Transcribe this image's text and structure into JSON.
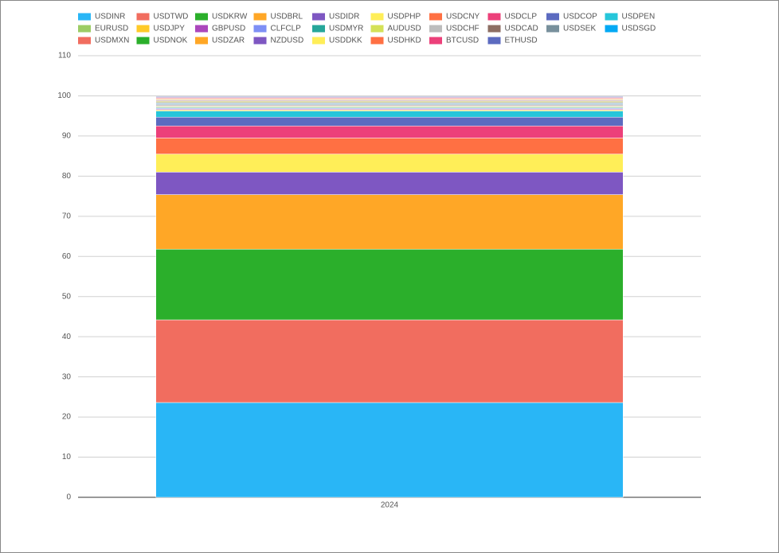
{
  "chart_data": {
    "type": "stacked-bar",
    "categories": [
      "2024"
    ],
    "ylim": [
      0,
      110
    ],
    "yticks": [
      0,
      10,
      20,
      30,
      40,
      50,
      60,
      70,
      80,
      90,
      100,
      110
    ],
    "grid": true,
    "series": [
      {
        "name": "USDINR",
        "color": "#29b6f6",
        "values": [
          23.6
        ]
      },
      {
        "name": "USDTWD",
        "color": "#f16d5f",
        "values": [
          20.6
        ]
      },
      {
        "name": "USDKRW",
        "color": "#2baf2b",
        "values": [
          17.6
        ]
      },
      {
        "name": "USDBRL",
        "color": "#ffa726",
        "values": [
          13.6
        ]
      },
      {
        "name": "USDIDR",
        "color": "#7e57c2",
        "values": [
          5.6
        ]
      },
      {
        "name": "USDPHP",
        "color": "#ffee58",
        "values": [
          4.5
        ]
      },
      {
        "name": "USDCNY",
        "color": "#ff7043",
        "values": [
          4.0
        ]
      },
      {
        "name": "USDCLP",
        "color": "#ec407a",
        "values": [
          3.0
        ]
      },
      {
        "name": "USDCOP",
        "color": "#5c6bc0",
        "values": [
          2.2
        ]
      },
      {
        "name": "USDPEN",
        "color": "#26c6da",
        "values": [
          1.5
        ]
      },
      {
        "name": "EURUSD",
        "color": "#9ccc65",
        "values": [
          0.2
        ]
      },
      {
        "name": "USDJPY",
        "color": "#ffca28",
        "values": [
          0.2
        ]
      },
      {
        "name": "GBPUSD",
        "color": "#ab47bc",
        "values": [
          0.2
        ]
      },
      {
        "name": "CLFCLP",
        "color": "#7e8ff5",
        "values": [
          0.2
        ]
      },
      {
        "name": "USDMYR",
        "color": "#26a69a",
        "values": [
          0.2
        ]
      },
      {
        "name": "AUDUSD",
        "color": "#d4e157",
        "values": [
          0.2
        ]
      },
      {
        "name": "USDCHF",
        "color": "#bdbdbd",
        "values": [
          0.2
        ]
      },
      {
        "name": "USDCAD",
        "color": "#8d6e63",
        "values": [
          0.2
        ]
      },
      {
        "name": "USDSEK",
        "color": "#78909c",
        "values": [
          0.2
        ]
      },
      {
        "name": "USDSGD",
        "color": "#03a9f4",
        "values": [
          0.2
        ]
      },
      {
        "name": "USDMXN",
        "color": "#f16d5f",
        "values": [
          0.2
        ]
      },
      {
        "name": "USDNOK",
        "color": "#2baf2b",
        "values": [
          0.2
        ]
      },
      {
        "name": "USDZAR",
        "color": "#ffa726",
        "values": [
          0.2
        ]
      },
      {
        "name": "NZDUSD",
        "color": "#7e57c2",
        "values": [
          0.2
        ]
      },
      {
        "name": "USDDKK",
        "color": "#ffee58",
        "values": [
          0.2
        ]
      },
      {
        "name": "USDHKD",
        "color": "#ff7043",
        "values": [
          0.2
        ]
      },
      {
        "name": "BTCUSD",
        "color": "#ec407a",
        "values": [
          0.2
        ]
      },
      {
        "name": "ETHUSD",
        "color": "#5c6bc0",
        "values": [
          0.2
        ]
      }
    ]
  }
}
